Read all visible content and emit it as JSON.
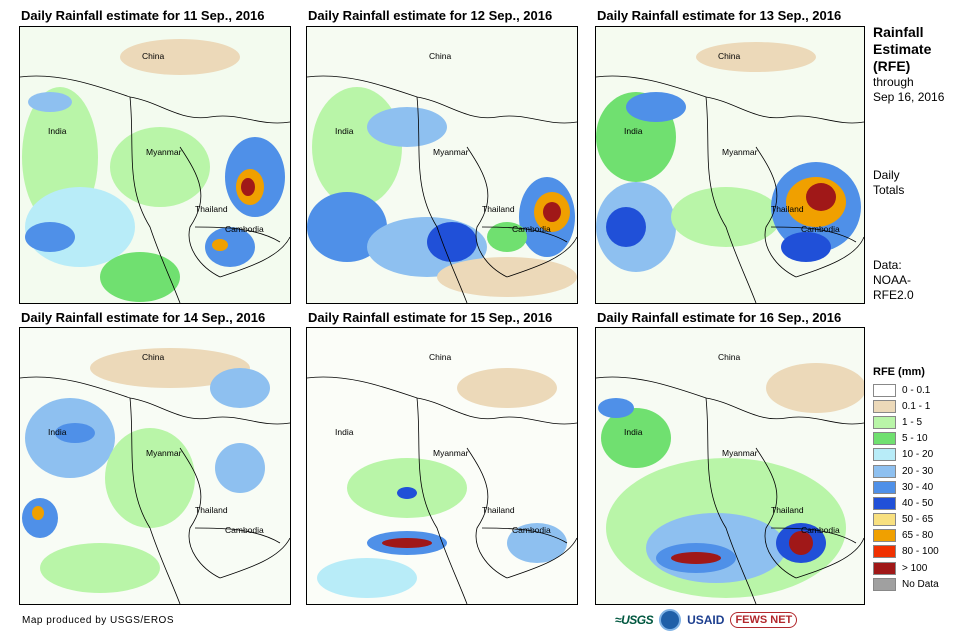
{
  "panels": [
    {
      "title": "Daily Rainfall estimate for 11 Sep., 2016"
    },
    {
      "title": "Daily Rainfall estimate for 12 Sep., 2016"
    },
    {
      "title": "Daily Rainfall estimate for 13 Sep., 2016"
    },
    {
      "title": "Daily Rainfall estimate for 14 Sep., 2016"
    },
    {
      "title": "Daily Rainfall estimate for 15 Sep., 2016"
    },
    {
      "title": "Daily Rainfall estimate for 16 Sep., 2016"
    }
  ],
  "map_labels": {
    "china": "China",
    "india": "India",
    "myanmar": "Myanmar",
    "thailand": "Thailand",
    "cambodia": "Cambodia"
  },
  "sidebar": {
    "title_line1": "Rainfall",
    "title_line2": "Estimate",
    "title_line3": "(RFE)",
    "through": "through",
    "date": "Sep 16, 2016",
    "daily": "Daily",
    "totals": "Totals",
    "data_label": "Data:",
    "data_source1": "NOAA-",
    "data_source2": "RFE2.0"
  },
  "legend": {
    "title": "RFE (mm)",
    "items": [
      {
        "label": "0 - 0.1",
        "color": "#ffffff"
      },
      {
        "label": "0.1 - 1",
        "color": "#ecd9b9"
      },
      {
        "label": "1 - 5",
        "color": "#b9f5a8"
      },
      {
        "label": "5 - 10",
        "color": "#70e070"
      },
      {
        "label": "10 - 20",
        "color": "#b8ecf8"
      },
      {
        "label": "20 - 30",
        "color": "#8ec0f0"
      },
      {
        "label": "30 - 40",
        "color": "#4f90e8"
      },
      {
        "label": "40 - 50",
        "color": "#2050d8"
      },
      {
        "label": "50 - 65",
        "color": "#f8e080"
      },
      {
        "label": "65 - 80",
        "color": "#f0a000"
      },
      {
        "label": "80 - 100",
        "color": "#f03000"
      },
      {
        "label": "> 100",
        "color": "#a01818"
      },
      {
        "label": "No Data",
        "color": "#a0a0a0"
      }
    ]
  },
  "footer": {
    "credit": "Map produced by USGS/EROS",
    "logo_usgs": "≈USGS",
    "logo_usaid": "USAID",
    "logo_fews": "FEWS NET"
  }
}
